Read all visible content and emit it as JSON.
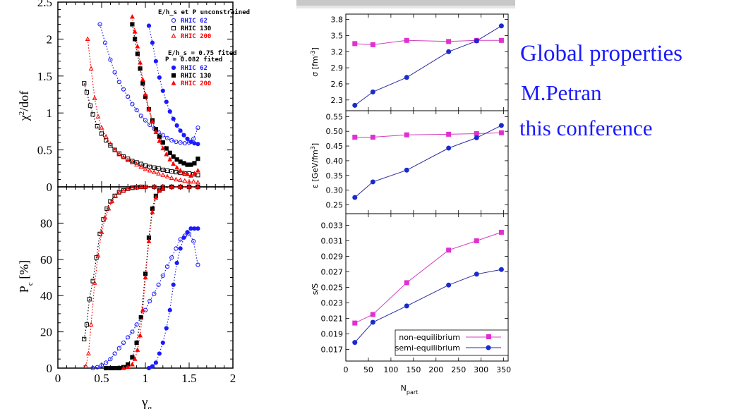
{
  "side_text": {
    "title": "Global properties",
    "author": "M.Petran",
    "venue": "this conference"
  },
  "chart_data": [
    {
      "type": "scatter",
      "panel": "top-left",
      "xlabel": "γq",
      "ylabel": "χ²/dof",
      "xlim": [
        0,
        2
      ],
      "ylim": [
        0,
        2.5
      ],
      "xticks": [
        "0",
        "0.5",
        "1",
        "1.5",
        "2"
      ],
      "yticks": [
        "0",
        "0.5",
        "1",
        "1.5",
        "2",
        "2.5"
      ],
      "legend": {
        "header1": "E/h_s et P unconstrained",
        "header2": "E/h_s = 0.75 fited",
        "header3": "P = 0.082 fited",
        "entries": [
          "RHIC 62",
          "RHIC 130",
          "RHIC 200",
          "RHIC 62",
          "RHIC 130",
          "RHIC 200"
        ]
      },
      "series": [
        {
          "name": "RHIC 62",
          "style": "open-circle",
          "color": "#1a1aff",
          "x": [
            0.48,
            0.54,
            0.6,
            0.65,
            0.7,
            0.75,
            0.8,
            0.85,
            0.9,
            0.95,
            1.0,
            1.05,
            1.1,
            1.15,
            1.2,
            1.25,
            1.3,
            1.35,
            1.4,
            1.45,
            1.5,
            1.55,
            1.6
          ],
          "y": [
            2.2,
            1.95,
            1.72,
            1.55,
            1.42,
            1.32,
            1.22,
            1.12,
            1.04,
            0.96,
            0.9,
            0.84,
            0.79,
            0.74,
            0.7,
            0.66,
            0.63,
            0.61,
            0.6,
            0.59,
            0.6,
            0.65,
            0.8
          ]
        },
        {
          "name": "RHIC 130",
          "style": "open-square",
          "color": "#000000",
          "x": [
            0.3,
            0.33,
            0.37,
            0.4,
            0.45,
            0.5,
            0.55,
            0.6,
            0.65,
            0.7,
            0.75,
            0.8,
            0.85,
            0.9,
            0.95,
            1.0,
            1.05,
            1.1,
            1.15,
            1.2,
            1.25,
            1.3,
            1.35,
            1.4,
            1.45,
            1.5,
            1.55,
            1.6
          ],
          "y": [
            1.4,
            1.28,
            1.1,
            0.98,
            0.82,
            0.72,
            0.63,
            0.56,
            0.5,
            0.45,
            0.41,
            0.38,
            0.35,
            0.33,
            0.31,
            0.29,
            0.27,
            0.26,
            0.25,
            0.23,
            0.22,
            0.21,
            0.2,
            0.19,
            0.18,
            0.18,
            0.17,
            0.16
          ]
        },
        {
          "name": "RHIC 200",
          "style": "open-triangle",
          "color": "#ff0000",
          "x": [
            0.34,
            0.38,
            0.42,
            0.46,
            0.5,
            0.55,
            0.6,
            0.65,
            0.7,
            0.75,
            0.8,
            0.85,
            0.9,
            0.95,
            1.0,
            1.05,
            1.1,
            1.15,
            1.2,
            1.25,
            1.3,
            1.35,
            1.4,
            1.45,
            1.5,
            1.55,
            1.6
          ],
          "y": [
            2.0,
            1.6,
            1.2,
            0.95,
            0.8,
            0.68,
            0.58,
            0.5,
            0.44,
            0.4,
            0.36,
            0.33,
            0.3,
            0.27,
            0.24,
            0.22,
            0.2,
            0.18,
            0.16,
            0.14,
            0.12,
            0.1,
            0.09,
            0.08,
            0.07,
            0.07,
            0.06
          ]
        },
        {
          "name": "RHIC 62",
          "style": "filled-circle",
          "color": "#1a1aff",
          "x": [
            1.04,
            1.08,
            1.12,
            1.16,
            1.2,
            1.24,
            1.28,
            1.32,
            1.36,
            1.4,
            1.44,
            1.48,
            1.52,
            1.56,
            1.6
          ],
          "y": [
            2.18,
            1.95,
            1.7,
            1.48,
            1.3,
            1.15,
            1.02,
            0.92,
            0.83,
            0.76,
            0.7,
            0.65,
            0.61,
            0.59,
            0.58
          ]
        },
        {
          "name": "RHIC 130",
          "style": "filled-square",
          "color": "#000000",
          "x": [
            0.85,
            0.88,
            0.91,
            0.94,
            0.97,
            1.0,
            1.04,
            1.08,
            1.12,
            1.16,
            1.2,
            1.24,
            1.28,
            1.32,
            1.36,
            1.4,
            1.44,
            1.48,
            1.52,
            1.56,
            1.6
          ],
          "y": [
            2.2,
            2.0,
            1.8,
            1.6,
            1.4,
            1.22,
            1.05,
            0.9,
            0.78,
            0.68,
            0.6,
            0.52,
            0.46,
            0.41,
            0.37,
            0.34,
            0.32,
            0.3,
            0.3,
            0.32,
            0.38
          ]
        },
        {
          "name": "RHIC 200",
          "style": "filled-triangle",
          "color": "#ff0000",
          "x": [
            0.85,
            0.88,
            0.91,
            0.94,
            0.97,
            1.0,
            1.04,
            1.08,
            1.12,
            1.16,
            1.2,
            1.24,
            1.28,
            1.32,
            1.36,
            1.4,
            1.44,
            1.48,
            1.52,
            1.56,
            1.6
          ],
          "y": [
            2.3,
            2.1,
            1.9,
            1.68,
            1.45,
            1.25,
            1.05,
            0.88,
            0.74,
            0.62,
            0.52,
            0.44,
            0.37,
            0.31,
            0.26,
            0.22,
            0.19,
            0.17,
            0.15,
            0.18,
            0.22
          ]
        }
      ]
    },
    {
      "type": "scatter",
      "panel": "bottom-left",
      "xlabel": "γq",
      "ylabel": "Pc [%]",
      "xlim": [
        0,
        2
      ],
      "ylim": [
        0,
        100
      ],
      "xticks": [
        "0",
        "0.5",
        "1",
        "1.5",
        "2"
      ],
      "yticks": [
        "0",
        "20",
        "40",
        "60",
        "80"
      ],
      "series": [
        {
          "name": "RHIC 62",
          "style": "open-circle",
          "color": "#1a1aff",
          "x": [
            0.4,
            0.45,
            0.5,
            0.55,
            0.6,
            0.65,
            0.7,
            0.75,
            0.8,
            0.85,
            0.9,
            0.95,
            1.0,
            1.05,
            1.1,
            1.15,
            1.2,
            1.25,
            1.3,
            1.35,
            1.4,
            1.45,
            1.5,
            1.55,
            1.6
          ],
          "y": [
            0,
            0.5,
            1.5,
            3,
            5,
            8,
            11,
            14,
            17,
            20,
            24,
            28,
            32,
            37,
            41,
            46,
            51,
            56,
            61,
            66,
            71,
            73,
            74,
            70,
            57
          ]
        },
        {
          "name": "RHIC 130",
          "style": "open-square",
          "color": "#000000",
          "x": [
            0.3,
            0.33,
            0.36,
            0.4,
            0.44,
            0.48,
            0.52,
            0.56,
            0.6,
            0.65,
            0.7,
            0.75,
            0.8,
            0.85,
            0.9,
            0.95,
            1.0,
            1.1,
            1.2,
            1.3,
            1.4,
            1.5,
            1.6
          ],
          "y": [
            16,
            24,
            38,
            48,
            61,
            74,
            82,
            88,
            92,
            95,
            97,
            98,
            99,
            99.5,
            99.8,
            100,
            100,
            100,
            100,
            100,
            100,
            100,
            100
          ]
        },
        {
          "name": "RHIC 200",
          "style": "open-triangle",
          "color": "#ff0000",
          "x": [
            0.32,
            0.35,
            0.38,
            0.42,
            0.46,
            0.5,
            0.54,
            0.58,
            0.62,
            0.66,
            0.7,
            0.75,
            0.8,
            0.85,
            0.9,
            0.95,
            1.0,
            1.1,
            1.2,
            1.3,
            1.4,
            1.5,
            1.6
          ],
          "y": [
            1,
            8,
            24,
            47,
            62,
            75,
            83,
            88,
            92,
            95,
            97,
            98,
            99,
            99.5,
            99.8,
            100,
            100,
            100,
            100,
            100,
            100,
            100,
            100
          ]
        },
        {
          "name": "RHIC 62",
          "style": "filled-circle",
          "color": "#1a1aff",
          "x": [
            1.04,
            1.08,
            1.12,
            1.16,
            1.2,
            1.24,
            1.28,
            1.32,
            1.36,
            1.4,
            1.44,
            1.48,
            1.52,
            1.56,
            1.6
          ],
          "y": [
            0,
            1,
            3,
            8,
            14,
            22,
            32,
            46,
            58,
            66,
            72,
            75,
            77,
            77,
            77
          ]
        },
        {
          "name": "RHIC 130",
          "style": "filled-square",
          "color": "#000000",
          "x": [
            0.55,
            0.6,
            0.65,
            0.7,
            0.75,
            0.8,
            0.85,
            0.9,
            0.95,
            1.0,
            1.04,
            1.08,
            1.12,
            1.16,
            1.2,
            1.3,
            1.4,
            1.5,
            1.6
          ],
          "y": [
            0,
            0,
            0,
            0,
            0.5,
            2,
            6,
            14,
            28,
            52,
            72,
            88,
            95,
            98,
            99,
            100,
            100,
            100,
            100
          ]
        },
        {
          "name": "RHIC 200",
          "style": "filled-triangle",
          "color": "#ff0000",
          "x": [
            0.75,
            0.8,
            0.85,
            0.88,
            0.91,
            0.94,
            0.97,
            1.0,
            1.04,
            1.08,
            1.12,
            1.16,
            1.2,
            1.3,
            1.4,
            1.5,
            1.6
          ],
          "y": [
            0,
            0.5,
            2,
            5,
            10,
            18,
            32,
            50,
            70,
            86,
            94,
            98,
            99,
            100,
            100,
            100,
            100
          ]
        }
      ]
    },
    {
      "type": "line",
      "panel": "right-top",
      "xlabel": "Npart",
      "ylabel": "σ [fm⁻³]",
      "xlim": [
        0,
        360
      ],
      "ylim": [
        2.1,
        3.9
      ],
      "xticks": [
        0,
        50,
        100,
        150,
        200,
        250,
        300,
        350
      ],
      "yticks": [
        "2.3",
        "2.6",
        "2.9",
        "3.2",
        "3.5",
        "3.8"
      ],
      "series": [
        {
          "name": "non-equilibrium",
          "x": [
            20,
            60,
            135,
            228,
            290,
            345
          ],
          "y": [
            3.35,
            3.33,
            3.41,
            3.39,
            3.41,
            3.41
          ]
        },
        {
          "name": "semi-equilibrium",
          "x": [
            20,
            60,
            135,
            228,
            290,
            345
          ],
          "y": [
            2.2,
            2.45,
            2.72,
            3.2,
            3.4,
            3.68
          ]
        }
      ]
    },
    {
      "type": "line",
      "panel": "right-middle",
      "xlabel": "Npart",
      "ylabel": "ε [GeV/fm³]",
      "xlim": [
        0,
        360
      ],
      "ylim": [
        0.22,
        0.57
      ],
      "xticks": [
        0,
        50,
        100,
        150,
        200,
        250,
        300,
        350
      ],
      "yticks": [
        "0.25",
        "0.30",
        "0.35",
        "0.40",
        "0.45",
        "0.50",
        "0.55"
      ],
      "series": [
        {
          "name": "non-equilibrium",
          "x": [
            20,
            60,
            135,
            228,
            290,
            345
          ],
          "y": [
            0.48,
            0.48,
            0.488,
            0.49,
            0.492,
            0.495
          ]
        },
        {
          "name": "semi-equilibrium",
          "x": [
            20,
            60,
            135,
            228,
            290,
            345
          ],
          "y": [
            0.275,
            0.328,
            0.368,
            0.443,
            0.478,
            0.52
          ]
        }
      ]
    },
    {
      "type": "line",
      "panel": "right-bottom",
      "xlabel": "Npart",
      "ylabel": "s/S",
      "xlim": [
        0,
        360
      ],
      "ylim": [
        0.0155,
        0.0345
      ],
      "xticks": [
        "0",
        "50",
        "100",
        "150",
        "200",
        "250",
        "300",
        "350"
      ],
      "yticks": [
        "0.017",
        "0.019",
        "0.021",
        "0.023",
        "0.025",
        "0.027",
        "0.029",
        "0.031",
        "0.033"
      ],
      "legend": {
        "entries": [
          "non-equilibrium",
          "semi-equilibrium"
        ],
        "position": "bottom-right"
      },
      "series": [
        {
          "name": "non-equilibrium",
          "x": [
            20,
            60,
            135,
            228,
            290,
            345
          ],
          "y": [
            0.0204,
            0.0215,
            0.0256,
            0.0298,
            0.031,
            0.0321
          ]
        },
        {
          "name": "semi-equilibrium",
          "x": [
            20,
            60,
            135,
            228,
            290,
            345
          ],
          "y": [
            0.0179,
            0.0205,
            0.0226,
            0.0253,
            0.0267,
            0.0273
          ]
        }
      ]
    }
  ]
}
